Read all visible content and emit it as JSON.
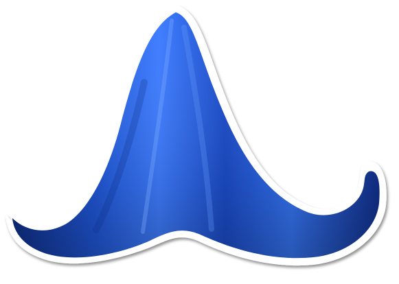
{
  "image": {
    "subject": "blue-draped-cloth-sticker",
    "colors": {
      "cloth_highlight": "#3f7dff",
      "cloth_main": "#1f56d6",
      "cloth_shadow": "#0f2f88",
      "outline": "#ffffff",
      "drop_shadow": "#000000"
    }
  }
}
